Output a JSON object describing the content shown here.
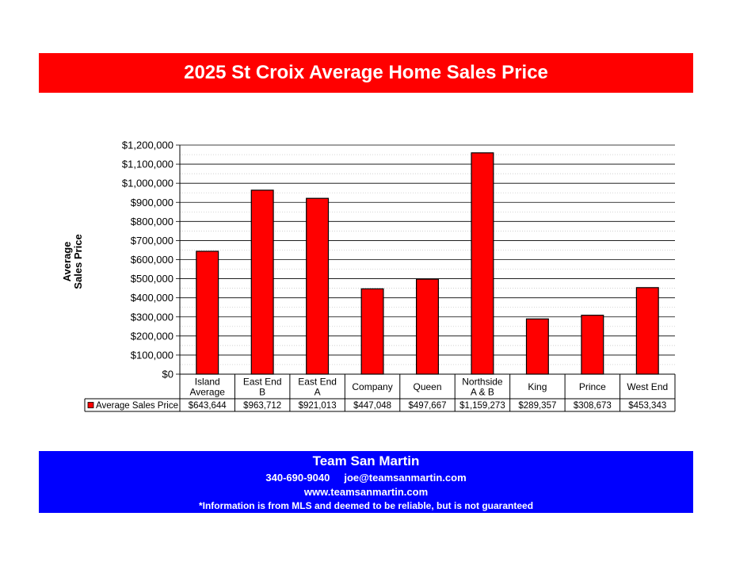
{
  "title": "2025 St Croix Average Home Sales Price",
  "footer": {
    "company": "Team San Martin",
    "phone": "340-690-9040",
    "email": "joe@teamsanmartin.com",
    "website": "www.teamsanmartin.com",
    "disclaimer": "*Information is from MLS and deemed to be reliable, but is not guaranteed"
  },
  "colors": {
    "title_bar": "#ff0000",
    "footer_bar": "#0000ff",
    "bar_fill": "#ff0000",
    "bar_stroke": "#000000"
  },
  "chart_data": {
    "type": "bar",
    "title": "2025 St Croix Average Home Sales Price",
    "ylabel_lines": [
      "Average",
      "Sales Price"
    ],
    "xlabel": "",
    "categories": [
      [
        "Island",
        "Average"
      ],
      [
        "East End",
        "B"
      ],
      [
        "East End",
        "A"
      ],
      [
        "Company"
      ],
      [
        "Queen"
      ],
      [
        "Northside",
        "A & B"
      ],
      [
        "King"
      ],
      [
        "Prince"
      ],
      [
        "West End"
      ]
    ],
    "series": [
      {
        "name": "Average Sales Price",
        "values": [
          643644,
          963712,
          921013,
          447048,
          497667,
          1159273,
          289357,
          308673,
          453343
        ],
        "display": [
          "$643,644",
          "$963,712",
          "$921,013",
          "$447,048",
          "$497,667",
          "$1,159,273",
          "$289,357",
          "$308,673",
          "$453,343"
        ]
      }
    ],
    "ylim": [
      0,
      1200000
    ],
    "yticks": [
      0,
      100000,
      200000,
      300000,
      400000,
      500000,
      600000,
      700000,
      800000,
      900000,
      1000000,
      1100000,
      1200000
    ],
    "ytick_labels": [
      "$0",
      "$100,000",
      "$200,000",
      "$300,000",
      "$400,000",
      "$500,000",
      "$600,000",
      "$700,000",
      "$800,000",
      "$900,000",
      "$1,000,000",
      "$1,100,000",
      "$1,200,000"
    ],
    "grid": true,
    "legend": "data-table"
  }
}
